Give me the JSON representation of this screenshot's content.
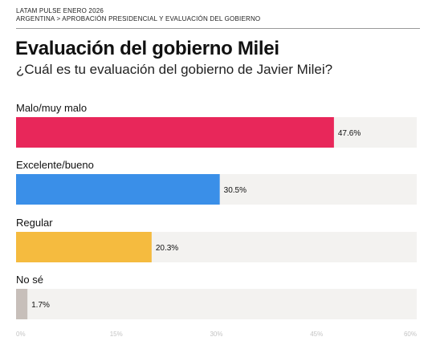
{
  "header": {
    "eyebrow_line1": "LATAM PULSE ENERO 2026",
    "eyebrow_line2": "ARGENTINA > APROBACIÓN PRESIDENCIAL Y EVALUACIÓN DEL GOBIERNO"
  },
  "chart_data": {
    "type": "bar",
    "orientation": "horizontal",
    "title": "Evaluación del gobierno Milei",
    "subtitle": "¿Cuál es tu evaluación del gobierno de Javier Milei?",
    "categories": [
      "Malo/muy malo",
      "Excelente/bueno",
      "Regular",
      "No sé"
    ],
    "values": [
      47.6,
      30.5,
      20.3,
      1.7
    ],
    "value_labels": [
      "47.6%",
      "30.5%",
      "20.3%",
      "1.7%"
    ],
    "colors": [
      "#e8275a",
      "#3a8fe8",
      "#f5bb3f",
      "#c7bfba"
    ],
    "track_color": "#f3f2f0",
    "xlim": [
      0,
      60
    ],
    "xticks": [
      0,
      15,
      30,
      45,
      60
    ],
    "xtick_labels": [
      "0%",
      "15%",
      "30%",
      "45%",
      "60%"
    ],
    "grid": false,
    "legend": "none"
  }
}
